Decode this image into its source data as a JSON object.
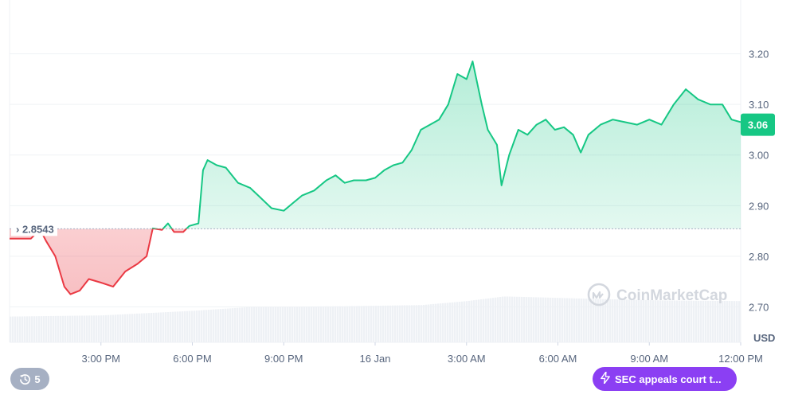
{
  "chart_data": {
    "type": "area",
    "x_tick_labels": [
      "3:00 PM",
      "6:00 PM",
      "9:00 PM",
      "16 Jan",
      "3:00 AM",
      "6:00 AM",
      "9:00 AM",
      "12:00 PM"
    ],
    "y_tick_labels": [
      "3.20",
      "3.10",
      "3.00",
      "2.90",
      "2.80",
      "2.70"
    ],
    "ylim": [
      2.63,
      3.3
    ],
    "y_unit": "USD",
    "baseline": {
      "value": 2.8543,
      "label": "2.8543"
    },
    "last_price": {
      "value": 3.06,
      "label": "3.06"
    },
    "colors": {
      "up": "#16c784",
      "down": "#ea3943",
      "grid": "#eff2f5",
      "tag": "#16c784"
    },
    "series": [
      {
        "values": [
          [
            0.0,
            2.835
          ],
          [
            0.7,
            2.835
          ],
          [
            1.0,
            2.853
          ],
          [
            1.2,
            2.83
          ],
          [
            1.5,
            2.8
          ],
          [
            1.8,
            2.74
          ],
          [
            2.0,
            2.725
          ],
          [
            2.3,
            2.732
          ],
          [
            2.6,
            2.755
          ],
          [
            3.0,
            2.748
          ],
          [
            3.4,
            2.74
          ],
          [
            3.8,
            2.77
          ],
          [
            4.2,
            2.785
          ],
          [
            4.5,
            2.8
          ],
          [
            4.7,
            2.855
          ],
          [
            5.0,
            2.852
          ],
          [
            5.2,
            2.865
          ],
          [
            5.4,
            2.848
          ],
          [
            5.7,
            2.848
          ],
          [
            5.9,
            2.86
          ],
          [
            6.2,
            2.865
          ],
          [
            6.35,
            2.97
          ],
          [
            6.5,
            2.99
          ],
          [
            6.8,
            2.98
          ],
          [
            7.1,
            2.975
          ],
          [
            7.5,
            2.945
          ],
          [
            7.9,
            2.935
          ],
          [
            8.2,
            2.918
          ],
          [
            8.6,
            2.895
          ],
          [
            9.0,
            2.89
          ],
          [
            9.3,
            2.905
          ],
          [
            9.6,
            2.92
          ],
          [
            10.0,
            2.93
          ],
          [
            10.4,
            2.95
          ],
          [
            10.7,
            2.96
          ],
          [
            11.0,
            2.945
          ],
          [
            11.3,
            2.95
          ],
          [
            11.7,
            2.95
          ],
          [
            12.0,
            2.955
          ],
          [
            12.3,
            2.97
          ],
          [
            12.6,
            2.98
          ],
          [
            12.9,
            2.985
          ],
          [
            13.2,
            3.01
          ],
          [
            13.5,
            3.05
          ],
          [
            13.8,
            3.06
          ],
          [
            14.1,
            3.07
          ],
          [
            14.4,
            3.1
          ],
          [
            14.7,
            3.16
          ],
          [
            15.0,
            3.15
          ],
          [
            15.2,
            3.185
          ],
          [
            15.5,
            3.1
          ],
          [
            15.7,
            3.05
          ],
          [
            16.0,
            3.02
          ],
          [
            16.15,
            2.94
          ],
          [
            16.4,
            3.0
          ],
          [
            16.7,
            3.05
          ],
          [
            17.0,
            3.04
          ],
          [
            17.3,
            3.06
          ],
          [
            17.6,
            3.07
          ],
          [
            17.9,
            3.05
          ],
          [
            18.2,
            3.055
          ],
          [
            18.5,
            3.04
          ],
          [
            18.75,
            3.005
          ],
          [
            19.0,
            3.04
          ],
          [
            19.4,
            3.06
          ],
          [
            19.8,
            3.07
          ],
          [
            20.2,
            3.065
          ],
          [
            20.6,
            3.06
          ],
          [
            21.0,
            3.07
          ],
          [
            21.4,
            3.06
          ],
          [
            21.8,
            3.1
          ],
          [
            22.2,
            3.13
          ],
          [
            22.6,
            3.11
          ],
          [
            23.0,
            3.1
          ],
          [
            23.4,
            3.1
          ],
          [
            23.7,
            3.07
          ],
          [
            24.0,
            3.065
          ]
        ]
      }
    ],
    "volume": [
      [
        0.0,
        0.45
      ],
      [
        3.0,
        0.47
      ],
      [
        6.0,
        0.55
      ],
      [
        8.0,
        0.62
      ],
      [
        11.0,
        0.63
      ],
      [
        13.5,
        0.65
      ],
      [
        15.0,
        0.72
      ],
      [
        16.2,
        0.8
      ],
      [
        17.0,
        0.79
      ],
      [
        19.0,
        0.76
      ],
      [
        21.5,
        0.73
      ],
      [
        24.0,
        0.72
      ]
    ],
    "watermark": "CoinMarketCap",
    "grid": true
  },
  "controls": {
    "events_count": "5",
    "news_label": "SEC appeals court t..."
  },
  "icons": {
    "events": "history-icon",
    "news": "lightning-icon",
    "watermark": "coinmarketcap-logo-icon"
  }
}
